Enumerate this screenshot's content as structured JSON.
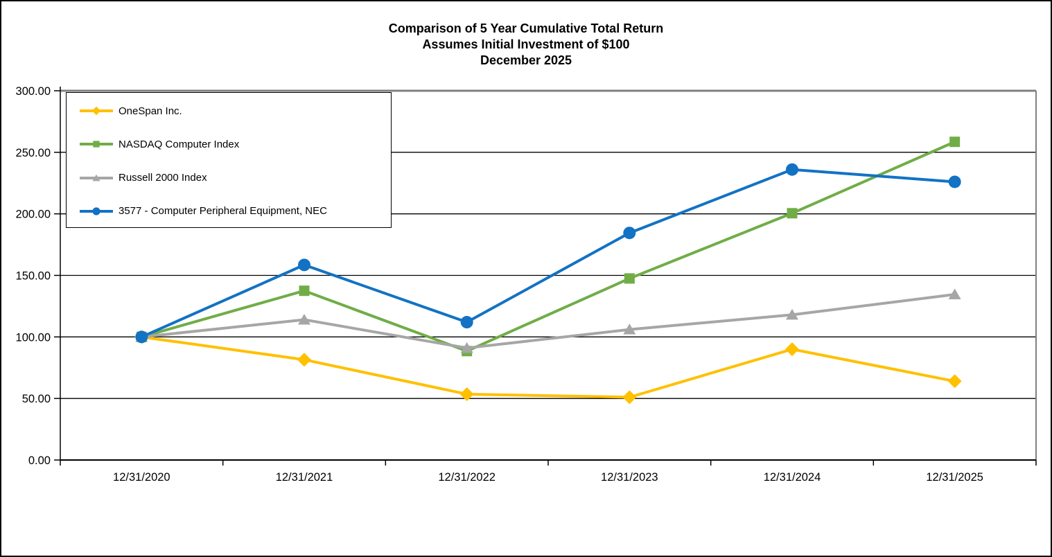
{
  "chart_data": {
    "type": "line",
    "title": "Comparison of 5 Year Cumulative Total Return",
    "subtitle": "Assumes Initial Investment of $100",
    "date_line": "December 2025",
    "categories": [
      "12/31/2020",
      "12/31/2021",
      "12/31/2022",
      "12/31/2023",
      "12/31/2024",
      "12/31/2025"
    ],
    "series": [
      {
        "name": "OneSpan Inc.",
        "color": "#FFC000",
        "marker": "diamond",
        "values": [
          100.0,
          81.5,
          53.5,
          51.0,
          90.0,
          64.0
        ]
      },
      {
        "name": "NASDAQ Computer Index",
        "color": "#70AD47",
        "marker": "square",
        "values": [
          100.0,
          137.5,
          88.5,
          147.5,
          200.5,
          258.5
        ]
      },
      {
        "name": "Russell 2000 Index",
        "color": "#A6A6A6",
        "marker": "triangle",
        "values": [
          100.0,
          114.0,
          91.0,
          106.0,
          118.0,
          134.5
        ]
      },
      {
        "name": "3577 - Computer Peripheral Equipment, NEC",
        "color": "#1272C4",
        "marker": "circle",
        "values": [
          100.0,
          158.5,
          112.0,
          184.5,
          236.0,
          226.0
        ]
      }
    ],
    "y_axis": {
      "min": 0,
      "max": 300,
      "step": 50,
      "tick_labels": [
        "300.00",
        "250.00",
        "200.00",
        "150.00",
        "100.00",
        "50.00",
        "0.00"
      ]
    },
    "x_axis": {
      "tick_labels": [
        "12/31/2020",
        "12/31/2021",
        "12/31/2022",
        "12/31/2023",
        "12/31/2024",
        "12/31/2025"
      ]
    },
    "grid": true,
    "legend_position": "top-left-inside",
    "colors": {
      "background": "#FFFFFF",
      "gridline": "#000000",
      "axis": "#000000",
      "plot_frame": "#808080",
      "text": "#000000"
    }
  }
}
